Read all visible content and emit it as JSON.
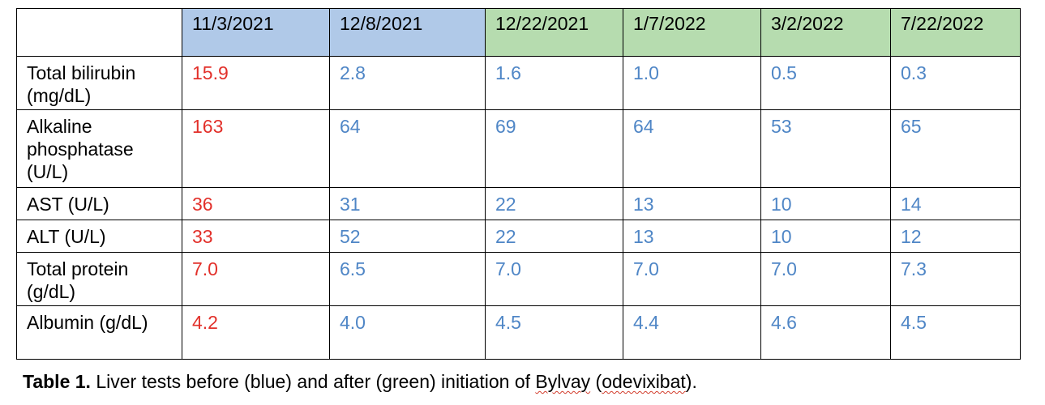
{
  "colors": {
    "before_header_bg": "#b0c9e8",
    "after_header_bg": "#b6dcaf",
    "baseline_value_text": "#e2302a",
    "followup_value_text": "#4f86c6"
  },
  "table": {
    "dates": [
      {
        "label": "11/3/2021",
        "period": "before"
      },
      {
        "label": "12/8/2021",
        "period": "before"
      },
      {
        "label": "12/22/2021",
        "period": "after"
      },
      {
        "label": "1/7/2022",
        "period": "after"
      },
      {
        "label": "3/2/2022",
        "period": "after"
      },
      {
        "label": "7/22/2022",
        "period": "after"
      }
    ],
    "rows": [
      {
        "test": "Total bilirubin (mg/dL)",
        "values": [
          "15.9",
          "2.8",
          "1.6",
          "1.0",
          "0.5",
          "0.3"
        ]
      },
      {
        "test": "Alkaline phosphatase (U/L)",
        "values": [
          "163",
          "64",
          "69",
          "64",
          "53",
          "65"
        ]
      },
      {
        "test": "AST (U/L)",
        "values": [
          "36",
          "31",
          "22",
          "13",
          "10",
          "14"
        ]
      },
      {
        "test": "ALT (U/L)",
        "values": [
          "33",
          "52",
          "22",
          "13",
          "10",
          "12"
        ]
      },
      {
        "test": "Total protein (g/dL)",
        "values": [
          "7.0",
          "6.5",
          "7.0",
          "7.0",
          "7.0",
          "7.3"
        ]
      },
      {
        "test": "Albumin (g/dL)",
        "values": [
          "4.2",
          "4.0",
          "4.5",
          "4.4",
          "4.6",
          "4.5"
        ]
      }
    ]
  },
  "caption": {
    "label": "Table 1.",
    "text_before": " Liver tests before (blue) and after (green) initiation of ",
    "drug_brand": "Bylvay",
    "text_middle": " (",
    "drug_generic": "odevixibat",
    "text_after": ")."
  }
}
